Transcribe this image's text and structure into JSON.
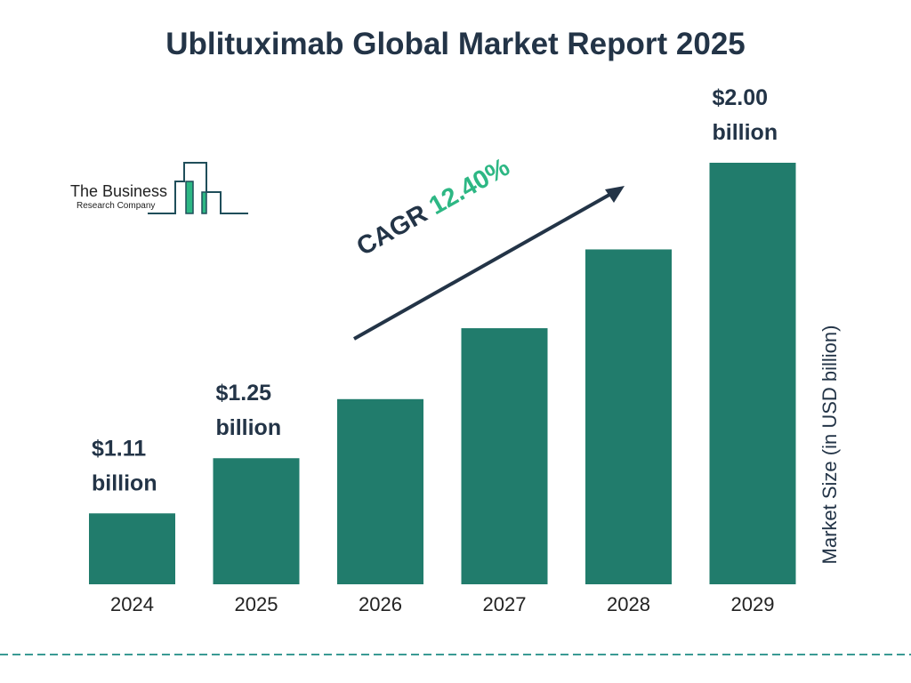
{
  "title": "Ublituximab Global Market Report 2025",
  "logo": {
    "line1": "The Business",
    "line2": "Research Company"
  },
  "cagr": {
    "label": "CAGR",
    "value": "12.40%"
  },
  "colors": {
    "bar": "#217c6c",
    "text": "#233447",
    "accent": "#2db784",
    "dash": "#3a9a94"
  },
  "chart_data": {
    "type": "bar",
    "title": "Ublituximab Global Market Report 2025",
    "categories": [
      "2024",
      "2025",
      "2026",
      "2027",
      "2028",
      "2029"
    ],
    "values": [
      1.11,
      1.25,
      1.4,
      1.58,
      1.78,
      2.0
    ],
    "data_labels": [
      {
        "amount": "$1.11",
        "unit": "billion"
      },
      {
        "amount": "$1.25",
        "unit": "billion"
      },
      null,
      null,
      null,
      {
        "amount": "$2.00",
        "unit": "billion"
      }
    ],
    "xlabel": "",
    "ylabel": "Market Size (in USD billion)",
    "grid": false,
    "legend": "none"
  }
}
